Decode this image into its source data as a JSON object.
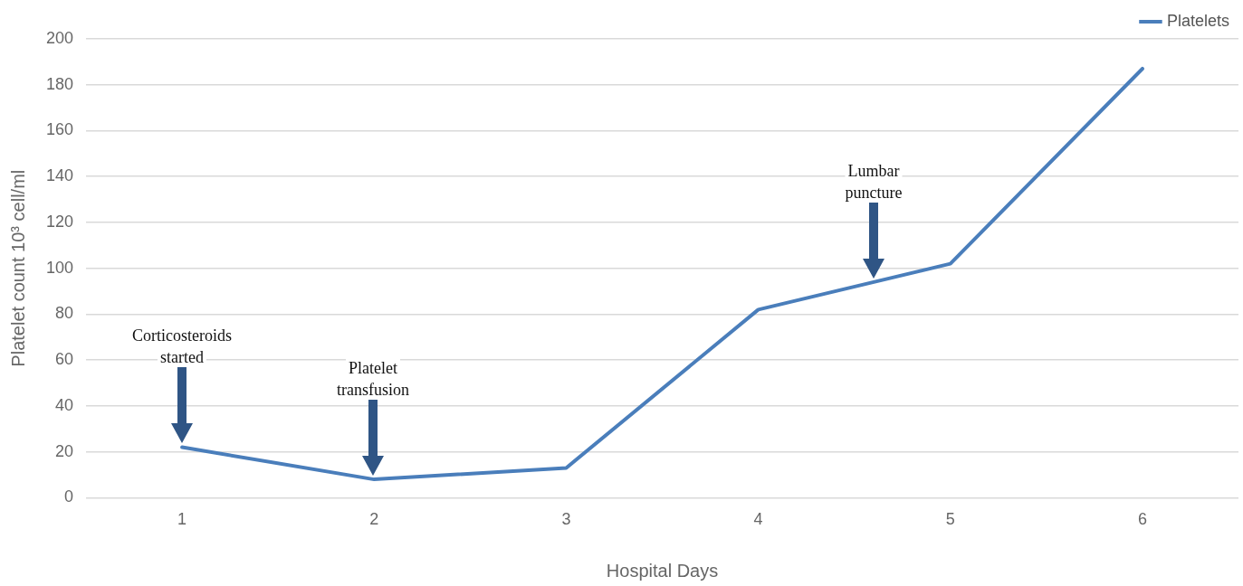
{
  "chart_data": {
    "type": "line",
    "xlabel": "Hospital Days",
    "ylabel": "Platelet count 10³ cell/ml",
    "x": [
      1,
      2,
      3,
      4,
      5,
      6
    ],
    "series": [
      {
        "name": "Platelets",
        "color": "#4a7ebb",
        "values": [
          22,
          8,
          13,
          82,
          102,
          187
        ]
      }
    ],
    "xlim": [
      0.5,
      6.5
    ],
    "xticks": [
      1,
      2,
      3,
      4,
      5,
      6
    ],
    "ylim": [
      0,
      200
    ],
    "yticks": [
      0,
      20,
      40,
      60,
      80,
      100,
      120,
      140,
      160,
      180,
      200
    ],
    "grid": "y",
    "legend": "top right",
    "marker": "none",
    "line_style": "solid",
    "annotations": [
      "Corticosteroids started",
      "Platelet transfusion",
      "Lumbar puncture"
    ]
  }
}
